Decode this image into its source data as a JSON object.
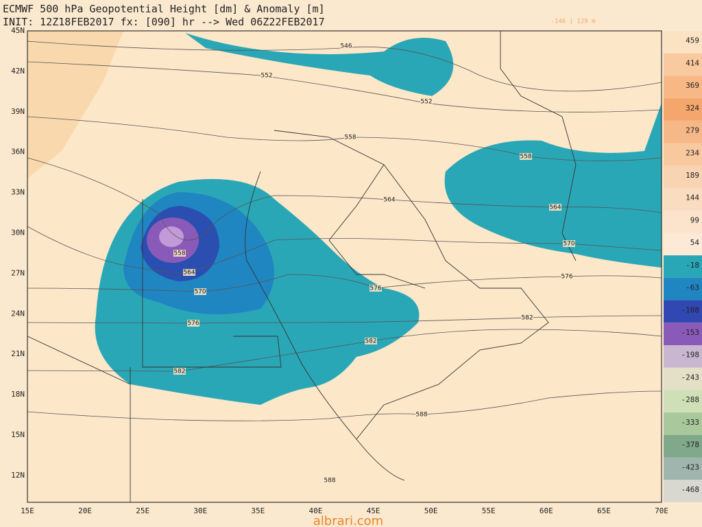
{
  "header": {
    "title": "ECMWF 500 hPa Geopotential Height [dm] & Anomaly [m]",
    "init": "INIT: 12Z18FEB2017 fx: [090] hr --> Wed 06Z22FEB2017",
    "range": "-146 | 129 m"
  },
  "map": {
    "lat_labels": [
      "45N",
      "42N",
      "39N",
      "36N",
      "33N",
      "30N",
      "27N",
      "24N",
      "21N",
      "18N",
      "15N",
      "12N"
    ],
    "lon_labels": [
      "15E",
      "20E",
      "25E",
      "30E",
      "35E",
      "40E",
      "45E",
      "50E",
      "55E",
      "60E",
      "65E",
      "70E"
    ],
    "contour_labels": [
      "546",
      "552",
      "552",
      "558",
      "558",
      "564",
      "564",
      "558",
      "564",
      "570",
      "570",
      "576",
      "576",
      "576",
      "582",
      "582",
      "582",
      "588",
      "588"
    ]
  },
  "colorbar": {
    "labels": [
      "459",
      "414",
      "369",
      "324",
      "279",
      "234",
      "189",
      "144",
      "99",
      "54",
      "-18",
      "-63",
      "-108",
      "-153",
      "-198",
      "-243",
      "-288",
      "-333",
      "-378",
      "-423",
      "-468"
    ]
  },
  "watermark": "albrari.com"
}
